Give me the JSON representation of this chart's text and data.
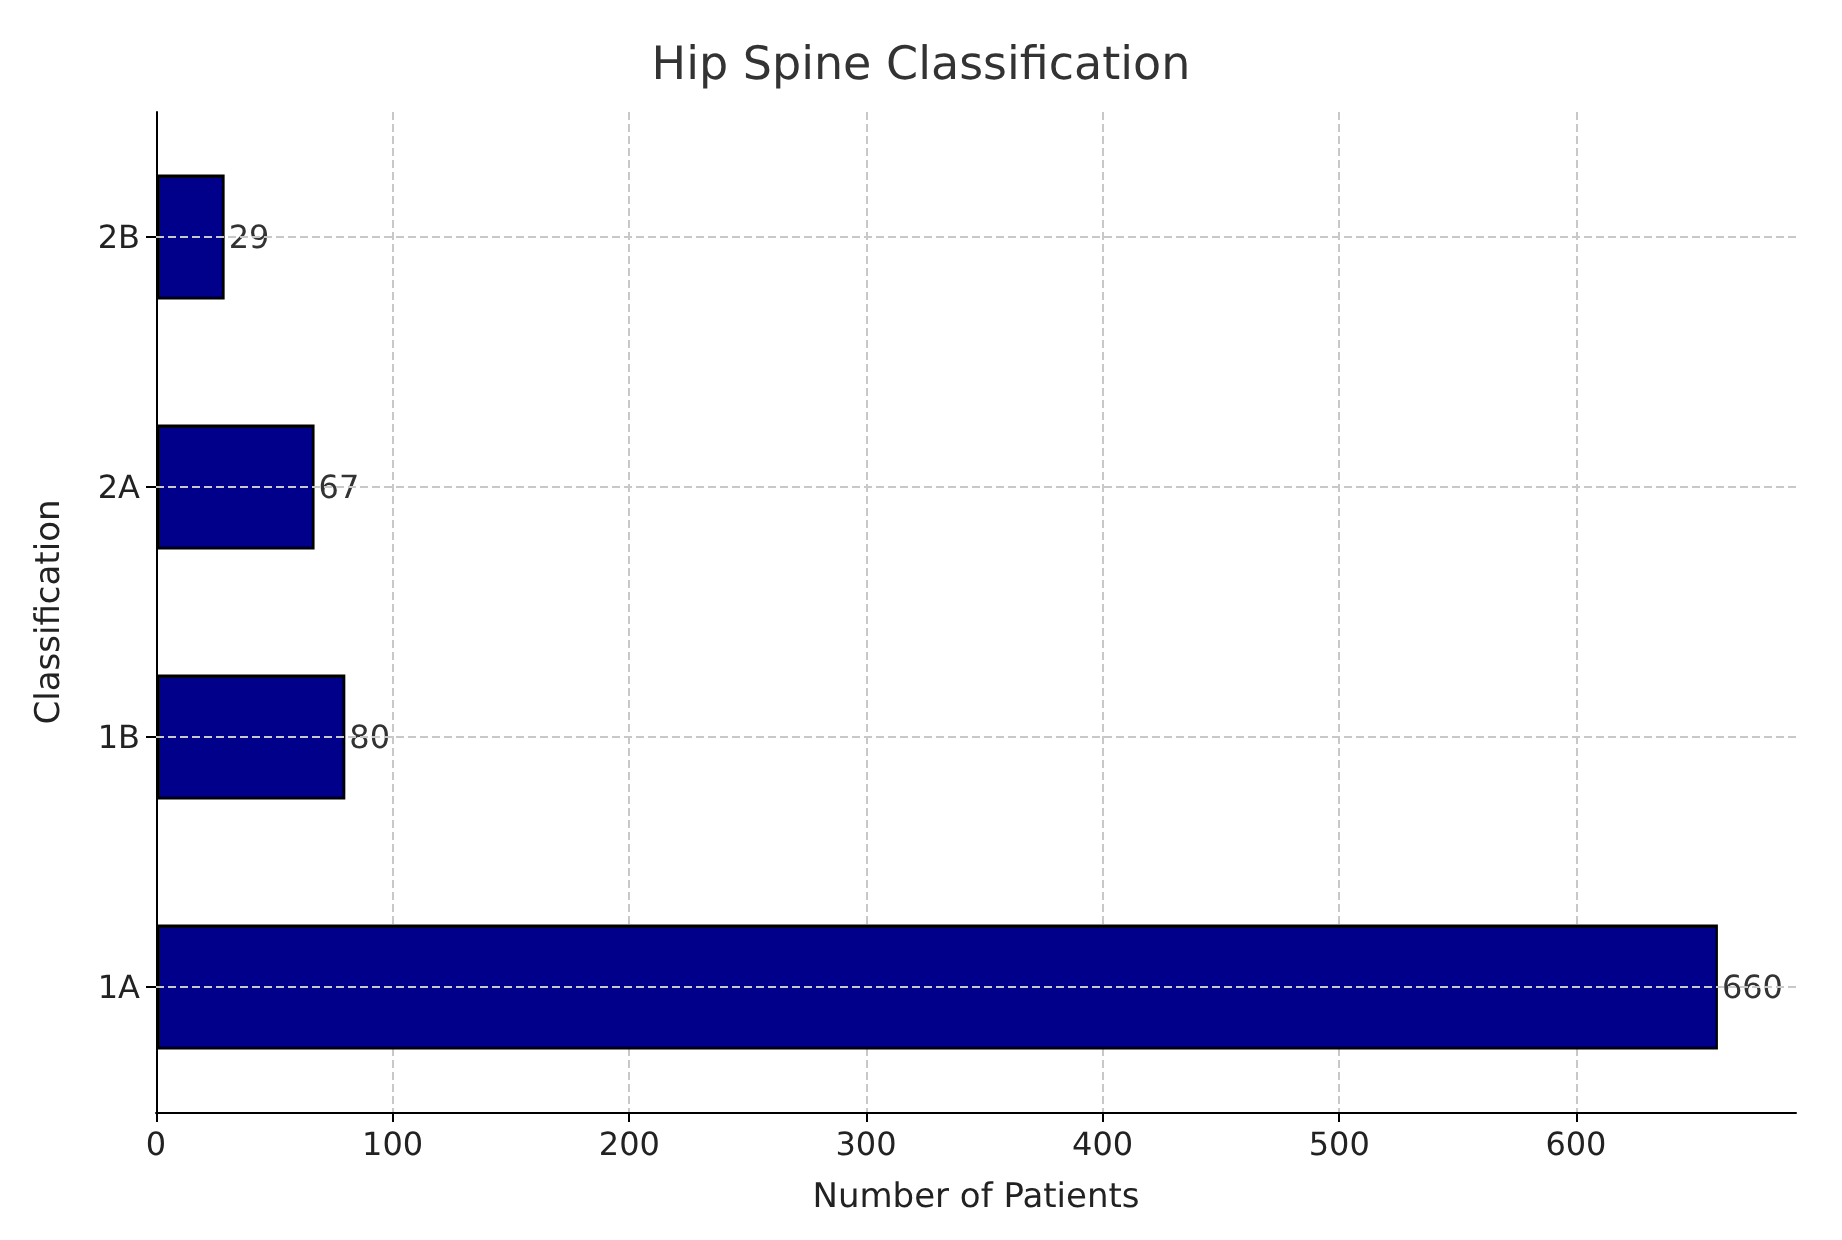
{
  "chart_data": {
    "type": "bar",
    "title": "Hip Spine Classification",
    "xlabel": "Number of Patients",
    "ylabel": "Classification",
    "orientation": "horizontal",
    "categories": [
      "2B",
      "2A",
      "1B",
      "1A"
    ],
    "values": [
      29,
      67,
      80,
      660
    ],
    "color": "#00008b",
    "xlim": [
      0,
      693
    ],
    "xticks": [
      0,
      100,
      200,
      300,
      400,
      500,
      600
    ],
    "grid": true,
    "data_labels": true
  }
}
